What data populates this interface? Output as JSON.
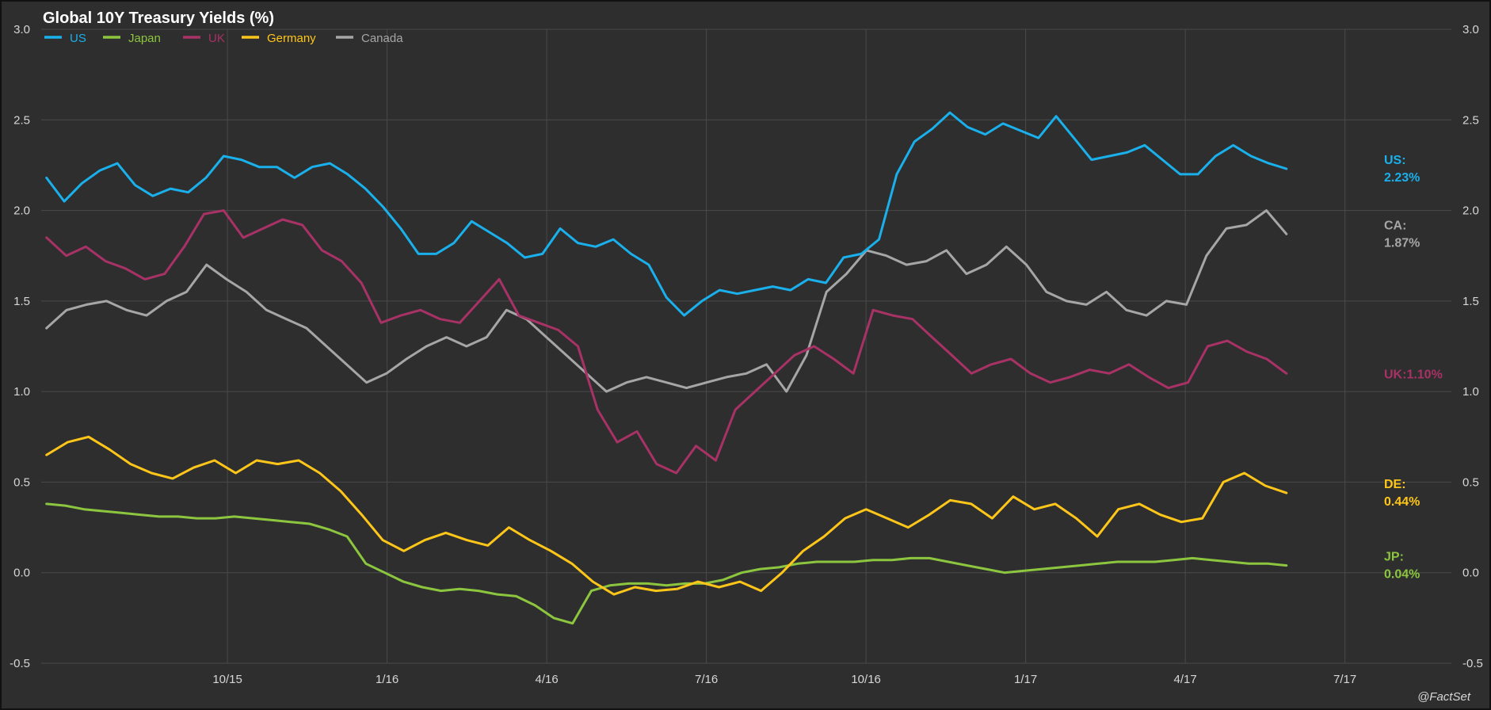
{
  "chart_data": {
    "type": "line",
    "title": "Global 10Y Treasury Yields (%)",
    "xlabel": "",
    "ylabel": "",
    "ylim": [
      -0.5,
      3.0
    ],
    "y_ticks": [
      "3.0",
      "2.5",
      "2.0",
      "1.5",
      "1.0",
      "0.5",
      "0.0",
      "-0.5"
    ],
    "x_ticks": [
      "10/15",
      "1/16",
      "4/16",
      "7/16",
      "10/16",
      "1/17",
      "4/17",
      "7/17"
    ],
    "x_tick_index": [
      3.5,
      6.5,
      9.5,
      12.5,
      15.5,
      18.5,
      21.5,
      24.5
    ],
    "x_domain": [
      0,
      26.5
    ],
    "grid": true,
    "legend_position": "top-left",
    "source": "@FactSet",
    "series": [
      {
        "name": "US",
        "color": "#1ab0ec",
        "end_label": [
          "US:",
          "2.23%"
        ],
        "values": [
          2.18,
          2.05,
          2.15,
          2.22,
          2.26,
          2.14,
          2.08,
          2.12,
          2.1,
          2.18,
          2.3,
          2.28,
          2.24,
          2.24,
          2.18,
          2.24,
          2.26,
          2.2,
          2.12,
          2.02,
          1.9,
          1.76,
          1.76,
          1.82,
          1.94,
          1.88,
          1.82,
          1.74,
          1.76,
          1.9,
          1.82,
          1.8,
          1.84,
          1.76,
          1.7,
          1.52,
          1.42,
          1.5,
          1.56,
          1.54,
          1.56,
          1.58,
          1.56,
          1.62,
          1.6,
          1.74,
          1.76,
          1.84,
          2.2,
          2.38,
          2.45,
          2.54,
          2.46,
          2.42,
          2.48,
          2.44,
          2.4,
          2.52,
          2.4,
          2.28,
          2.3,
          2.32,
          2.36,
          2.28,
          2.2,
          2.2,
          2.3,
          2.36,
          2.3,
          2.26,
          2.23
        ]
      },
      {
        "name": "Japan",
        "color": "#8cc63f",
        "end_label": [
          "JP:",
          "0.04%"
        ],
        "values": [
          0.38,
          0.37,
          0.35,
          0.34,
          0.33,
          0.32,
          0.31,
          0.31,
          0.3,
          0.3,
          0.31,
          0.3,
          0.29,
          0.28,
          0.27,
          0.24,
          0.2,
          0.05,
          0.0,
          -0.05,
          -0.08,
          -0.1,
          -0.09,
          -0.1,
          -0.12,
          -0.13,
          -0.18,
          -0.25,
          -0.28,
          -0.1,
          -0.07,
          -0.06,
          -0.06,
          -0.07,
          -0.06,
          -0.06,
          -0.04,
          0.0,
          0.02,
          0.03,
          0.05,
          0.06,
          0.06,
          0.06,
          0.07,
          0.07,
          0.08,
          0.08,
          0.06,
          0.04,
          0.02,
          0.0,
          0.01,
          0.02,
          0.03,
          0.04,
          0.05,
          0.06,
          0.06,
          0.06,
          0.07,
          0.08,
          0.07,
          0.06,
          0.05,
          0.05,
          0.04
        ]
      },
      {
        "name": "UK",
        "color": "#a83266",
        "end_label": [
          "UK:1.10%"
        ],
        "values": [
          1.85,
          1.75,
          1.8,
          1.72,
          1.68,
          1.62,
          1.65,
          1.8,
          1.98,
          2.0,
          1.85,
          1.9,
          1.95,
          1.92,
          1.78,
          1.72,
          1.6,
          1.38,
          1.42,
          1.45,
          1.4,
          1.38,
          1.5,
          1.62,
          1.42,
          1.38,
          1.34,
          1.25,
          0.9,
          0.72,
          0.78,
          0.6,
          0.55,
          0.7,
          0.62,
          0.9,
          1.0,
          1.1,
          1.2,
          1.25,
          1.18,
          1.1,
          1.45,
          1.42,
          1.4,
          1.3,
          1.2,
          1.1,
          1.15,
          1.18,
          1.1,
          1.05,
          1.08,
          1.12,
          1.1,
          1.15,
          1.08,
          1.02,
          1.05,
          1.25,
          1.28,
          1.22,
          1.18,
          1.1
        ]
      },
      {
        "name": "Germany",
        "color": "#ffc61a",
        "end_label": [
          "DE:",
          "0.44%"
        ],
        "values": [
          0.65,
          0.72,
          0.75,
          0.68,
          0.6,
          0.55,
          0.52,
          0.58,
          0.62,
          0.55,
          0.62,
          0.6,
          0.62,
          0.55,
          0.45,
          0.32,
          0.18,
          0.12,
          0.18,
          0.22,
          0.18,
          0.15,
          0.25,
          0.18,
          0.12,
          0.05,
          -0.05,
          -0.12,
          -0.08,
          -0.1,
          -0.09,
          -0.05,
          -0.08,
          -0.05,
          -0.1,
          0.0,
          0.12,
          0.2,
          0.3,
          0.35,
          0.3,
          0.25,
          0.32,
          0.4,
          0.38,
          0.3,
          0.42,
          0.35,
          0.38,
          0.3,
          0.2,
          0.35,
          0.38,
          0.32,
          0.28,
          0.3,
          0.5,
          0.55,
          0.48,
          0.44
        ]
      },
      {
        "name": "Canada",
        "color": "#a6a6a6",
        "end_label": [
          "CA:",
          "1.87%"
        ],
        "values": [
          1.35,
          1.45,
          1.48,
          1.5,
          1.45,
          1.42,
          1.5,
          1.55,
          1.7,
          1.62,
          1.55,
          1.45,
          1.4,
          1.35,
          1.25,
          1.15,
          1.05,
          1.1,
          1.18,
          1.25,
          1.3,
          1.25,
          1.3,
          1.45,
          1.4,
          1.3,
          1.2,
          1.1,
          1.0,
          1.05,
          1.08,
          1.05,
          1.02,
          1.05,
          1.08,
          1.1,
          1.15,
          1.0,
          1.2,
          1.55,
          1.65,
          1.78,
          1.75,
          1.7,
          1.72,
          1.78,
          1.65,
          1.7,
          1.8,
          1.7,
          1.55,
          1.5,
          1.48,
          1.55,
          1.45,
          1.42,
          1.5,
          1.48,
          1.75,
          1.9,
          1.92,
          2.0,
          1.87
        ]
      }
    ]
  }
}
